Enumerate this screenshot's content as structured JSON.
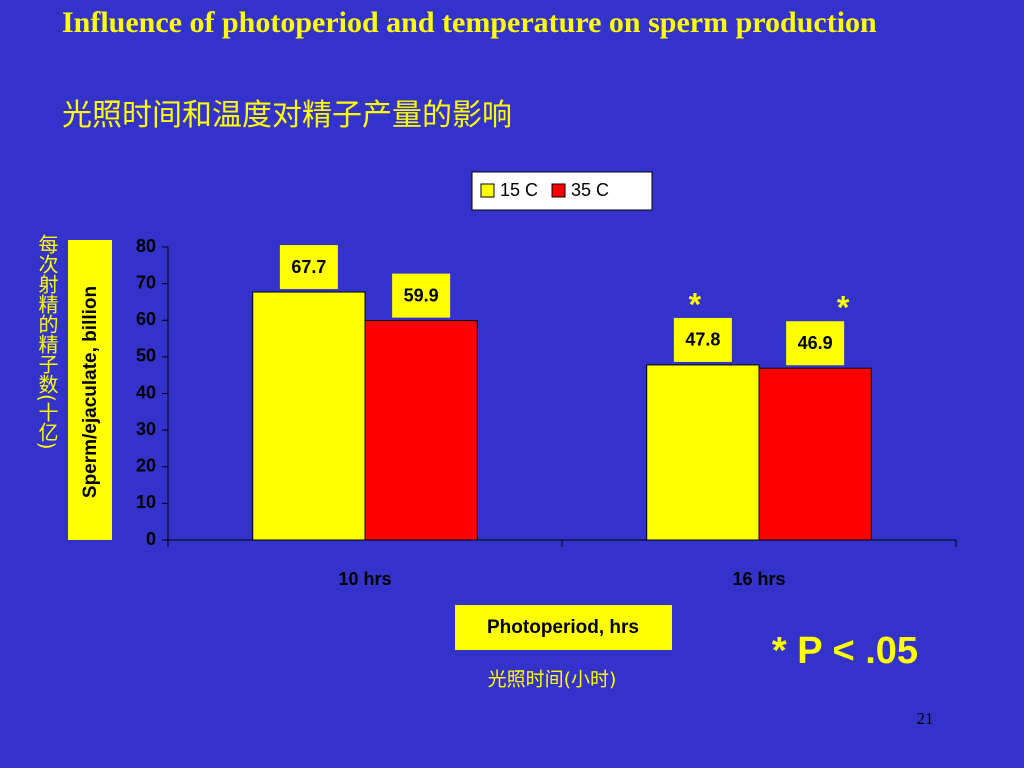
{
  "chart_data": {
    "type": "bar",
    "title": "Influence of photoperiod and temperature on sperm production",
    "subtitle": "光照时间和温度对精子产量的影响",
    "y_label": "Sperm/ejaculate, billion",
    "y_label_cn": "每次射精的精子数(十亿)",
    "x_label": "Photoperiod, hrs",
    "x_label_cn": "光照时间(小时)",
    "categories": [
      "10 hrs",
      "16 hrs"
    ],
    "series": [
      {
        "name": "15 C",
        "color": "#ffff00",
        "values": [
          67.7,
          47.8
        ],
        "marks": [
          null,
          "*"
        ]
      },
      {
        "name": "35 C",
        "color": "#ff0000",
        "values": [
          59.9,
          46.9
        ],
        "marks": [
          null,
          "*"
        ]
      }
    ],
    "ylim": [
      0,
      80
    ],
    "yticks": [
      0,
      10,
      20,
      30,
      40,
      50,
      60,
      70,
      80
    ],
    "legend": "top-right",
    "annotation": "* P < .05"
  },
  "slide_number": "21"
}
